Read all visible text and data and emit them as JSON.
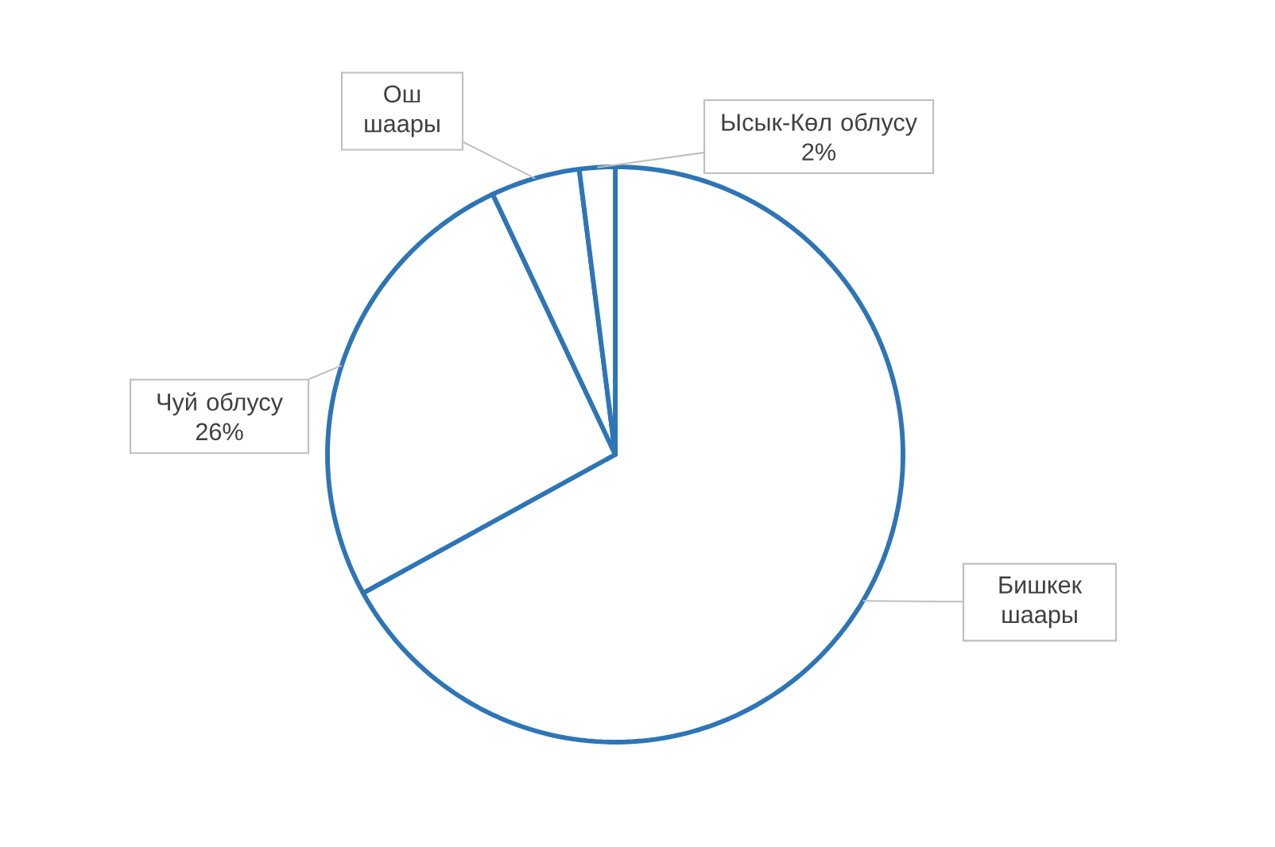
{
  "chart_data": {
    "type": "pie",
    "categories": [
      "Бишкек шаары",
      "Чуй облусу",
      "Ош шаары",
      "Ысык-Көл облусу"
    ],
    "values": [
      67,
      26,
      5,
      2
    ],
    "value_labels": [
      null,
      "26%",
      null,
      "2%"
    ],
    "colors": [
      "#ffffff",
      "#ffffff",
      "#ffffff",
      "#ffffff"
    ]
  }
}
